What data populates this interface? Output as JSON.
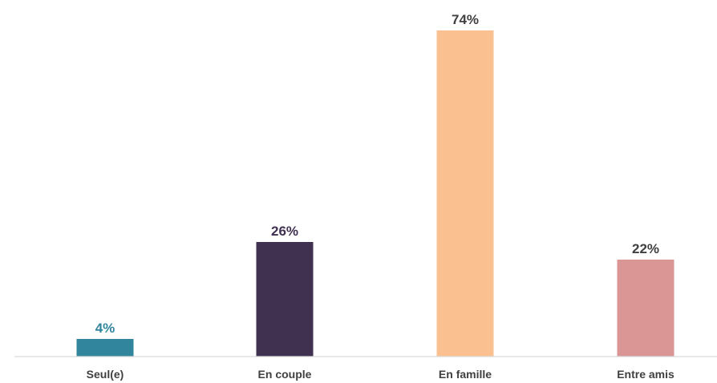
{
  "chart_data": {
    "type": "bar",
    "categories": [
      "Seul(e)",
      "En couple",
      "En famille",
      "Entre amis"
    ],
    "values": [
      4,
      26,
      74,
      22
    ],
    "value_labels": [
      "4%",
      "26%",
      "74%",
      "22%"
    ],
    "colors": [
      "#31859c",
      "#403151",
      "#fac090",
      "#d99694"
    ],
    "label_colors": [
      "#31859c",
      "#403151",
      "#404040",
      "#404040"
    ],
    "axis_color": "#d9d9d9",
    "ylim": [
      0,
      74
    ],
    "grid": false,
    "legend": "none"
  }
}
